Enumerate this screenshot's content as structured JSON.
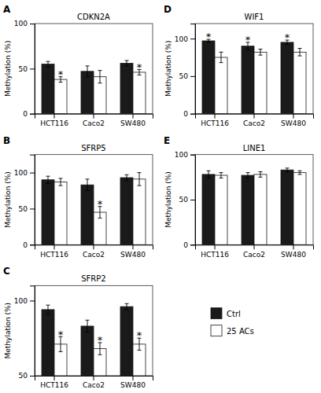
{
  "chart_data": [
    {
      "type": "bar",
      "panel_label": "A",
      "title": "CDKN2A",
      "y_label": "Methylation (%)",
      "categories": [
        "HCT116",
        "Caco2",
        "SW480"
      ],
      "series": [
        {
          "name": "Ctrl",
          "color": "#1a1a1a",
          "values": [
            55,
            47,
            56
          ],
          "error": [
            3,
            6,
            3
          ]
        },
        {
          "name": "25 ACs",
          "color": "#ffffff",
          "values": [
            38,
            41,
            46
          ],
          "error": [
            3,
            7,
            3
          ]
        }
      ],
      "ylim": [
        0,
        100
      ],
      "yticks": [
        0,
        50,
        100
      ],
      "annotations": [
        {
          "text": "*",
          "category": "HCT116",
          "series": "25 ACs"
        },
        {
          "text": "*",
          "category": "SW480",
          "series": "25 ACs"
        }
      ]
    },
    {
      "type": "bar",
      "panel_label": "B",
      "title": "SFRP5",
      "y_label": "Methylation (%)",
      "categories": [
        "HCT116",
        "Caco2",
        "SW480"
      ],
      "series": [
        {
          "name": "Ctrl",
          "color": "#1a1a1a",
          "values": [
            90,
            83,
            93
          ],
          "error": [
            5,
            8,
            4
          ]
        },
        {
          "name": "25 ACs",
          "color": "#ffffff",
          "values": [
            87,
            45,
            91
          ],
          "error": [
            5,
            8,
            9
          ]
        }
      ],
      "ylim": [
        0,
        125
      ],
      "yticks": [
        0,
        50,
        100
      ],
      "annotations": [
        {
          "text": "*",
          "category": "Caco2",
          "series": "25 ACs"
        }
      ]
    },
    {
      "type": "bar",
      "panel_label": "C",
      "title": "SFRP2",
      "y_label": "Methylation (%)",
      "categories": [
        "HCT116",
        "Caco2",
        "SW480"
      ],
      "series": [
        {
          "name": "Ctrl",
          "color": "#1a1a1a",
          "values": [
            94,
            83,
            96
          ],
          "error": [
            3,
            4,
            2
          ]
        },
        {
          "name": "25 ACs",
          "color": "#ffffff",
          "values": [
            71,
            68,
            71
          ],
          "error": [
            5,
            4,
            4
          ]
        }
      ],
      "ylim": [
        50,
        110
      ],
      "yticks": [
        50,
        100
      ],
      "annotations": [
        {
          "text": "*",
          "category": "HCT116",
          "series": "25 ACs"
        },
        {
          "text": "*",
          "category": "Caco2",
          "series": "25 ACs"
        },
        {
          "text": "*",
          "category": "SW480",
          "series": "25 ACs"
        }
      ]
    },
    {
      "type": "bar",
      "panel_label": "D",
      "title": "WIF1",
      "y_label": "Methylation (%)",
      "categories": [
        "HCT116",
        "Caco2",
        "SW480"
      ],
      "series": [
        {
          "name": "Ctrl",
          "color": "#1a1a1a",
          "values": [
            97,
            90,
            95
          ],
          "error": [
            2,
            5,
            3
          ]
        },
        {
          "name": "25 ACs",
          "color": "#ffffff",
          "values": [
            75,
            82,
            82
          ],
          "error": [
            7,
            4,
            5
          ]
        }
      ],
      "ylim": [
        0,
        120
      ],
      "yticks": [
        0,
        50,
        100
      ],
      "annotations": [
        {
          "text": "*",
          "category": "HCT116",
          "series": "Ctrl"
        },
        {
          "text": "*",
          "category": "Caco2",
          "series": "Ctrl"
        },
        {
          "text": "*",
          "category": "SW480",
          "series": "Ctrl"
        }
      ]
    },
    {
      "type": "bar",
      "panel_label": "E",
      "title": "LINE1",
      "y_label": "Methylation (%)",
      "categories": [
        "HCT116",
        "Caco2",
        "SW480"
      ],
      "series": [
        {
          "name": "Ctrl",
          "color": "#1a1a1a",
          "values": [
            78,
            77,
            83
          ],
          "error": [
            4,
            3,
            2
          ]
        },
        {
          "name": "25 ACs",
          "color": "#ffffff",
          "values": [
            77,
            78,
            80
          ],
          "error": [
            3,
            3,
            2
          ]
        }
      ],
      "ylim": [
        0,
        100
      ],
      "yticks": [
        0,
        50,
        100
      ],
      "annotations": []
    }
  ]
}
